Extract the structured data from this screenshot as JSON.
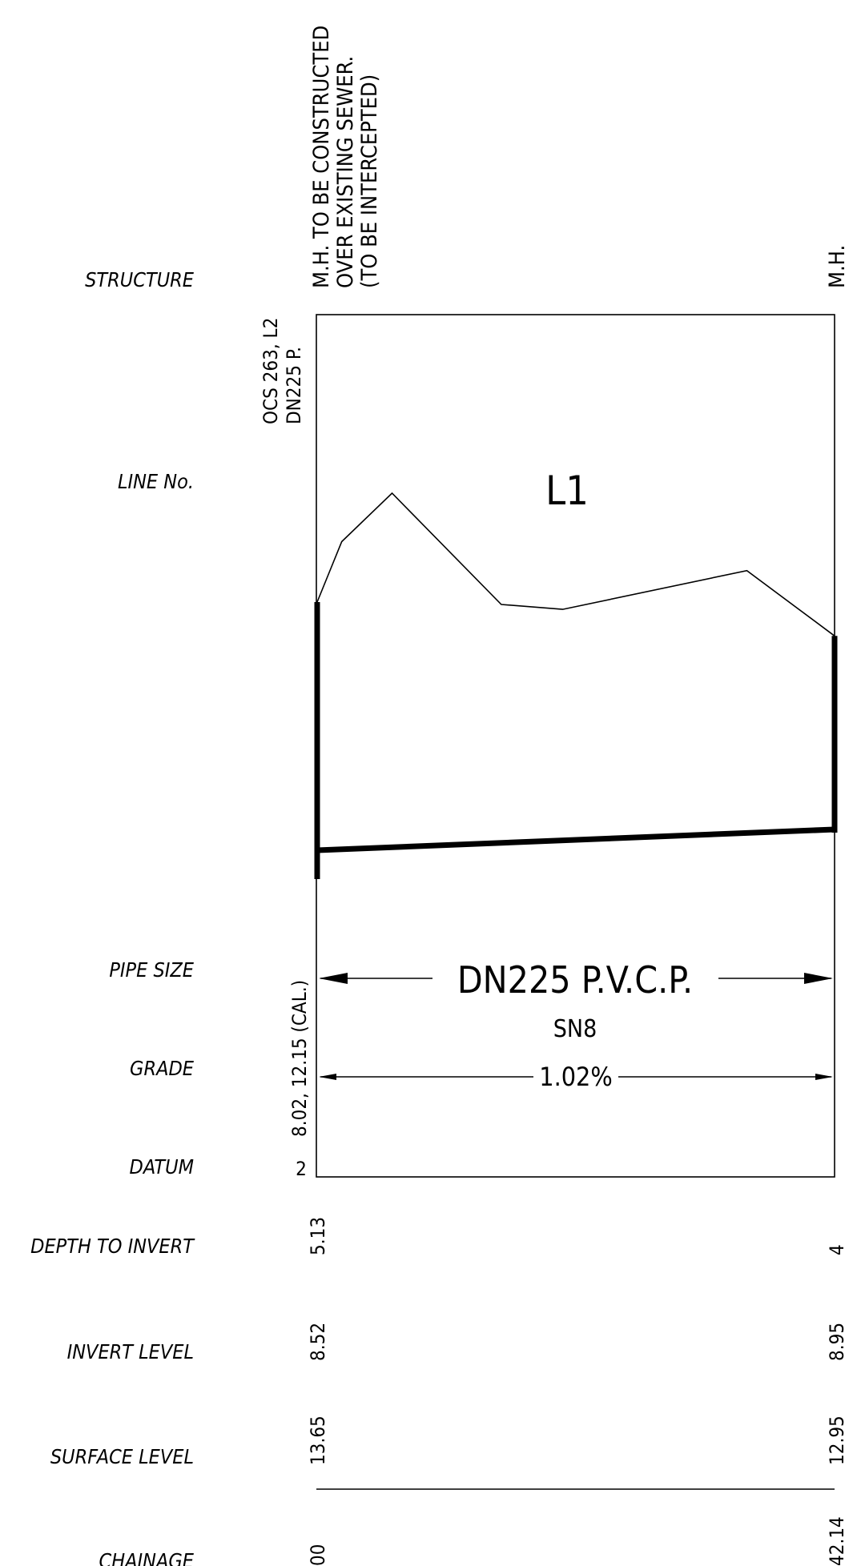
{
  "row_labels": {
    "structure": "STRUCTURE",
    "line_no": "LINE No.",
    "pipe_size": "PIPE SIZE",
    "grade": "GRADE",
    "datum": "DATUM",
    "depth_to_invert": "DEPTH TO INVERT",
    "invert_level": "INVERT LEVEL",
    "surface_level": "SURFACE LEVEL",
    "chainage": "CHAINAGE"
  },
  "structure": {
    "start_line1": "M.H. TO BE CONSTRUCTED",
    "start_line2": "OVER EXISTING SEWER.",
    "start_line3": "(TO BE INTERCEPTED)",
    "end": "M.H."
  },
  "incoming": {
    "line1": "OCS 263, L2",
    "line2": "DN225 P."
  },
  "line_no": "L1",
  "pipe_size": "DN225 P.V.C.P.",
  "pipe_class": "SN8",
  "grade": "1.02%",
  "datum_levels": "8.02, 12.15 (CAL.)",
  "datum": "2",
  "depth_to_invert": {
    "start": "5.13",
    "end": "4"
  },
  "invert_level": {
    "start": "8.52",
    "end": "8.95"
  },
  "surface_level": {
    "start": "13.65",
    "end": "12.95"
  },
  "chainage": {
    "start": "00",
    "end": "42.14"
  },
  "profile": {
    "chainage_range": [
      0,
      42.14
    ],
    "ground_surface": [
      {
        "chainage": 0,
        "level": 13.65
      },
      {
        "chainage": 2.0,
        "level": 14.9
      },
      {
        "chainage": 6.1,
        "level": 15.9
      },
      {
        "chainage": 15.0,
        "level": 13.6
      },
      {
        "chainage": 20.0,
        "level": 13.5
      },
      {
        "chainage": 35.0,
        "level": 14.3
      },
      {
        "chainage": 42.14,
        "level": 12.95
      }
    ],
    "invert": [
      {
        "chainage": 0,
        "level": 8.52
      },
      {
        "chainage": 42.14,
        "level": 8.95
      }
    ]
  }
}
